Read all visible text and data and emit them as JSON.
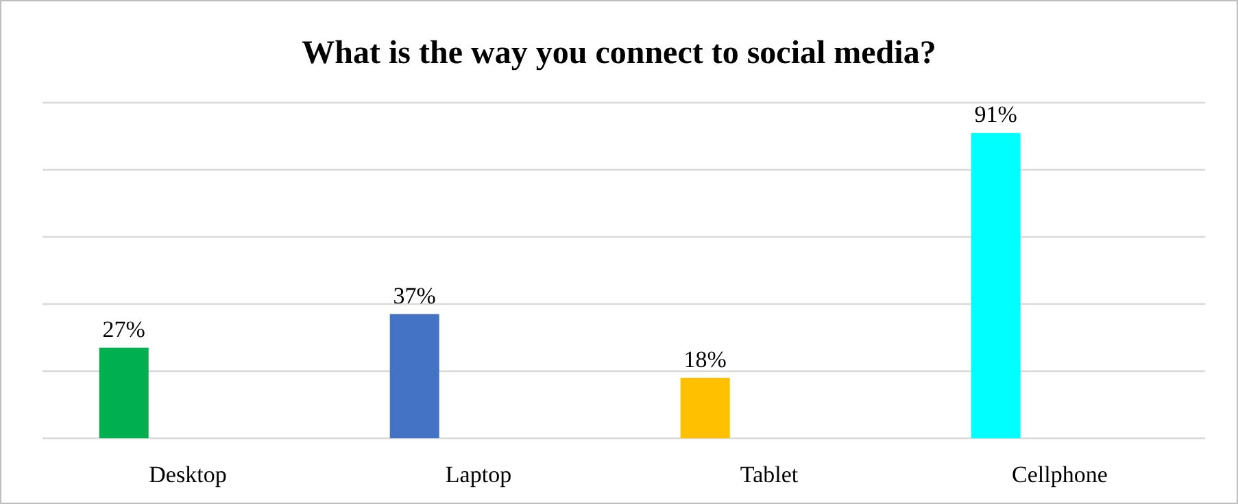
{
  "chart_data": {
    "type": "bar",
    "title": "What is the way you connect to social media?",
    "categories": [
      "Desktop",
      "Laptop",
      "Tablet",
      "Cellphone"
    ],
    "values": [
      27,
      37,
      18,
      91
    ],
    "colors": [
      "#00b050",
      "#4472c4",
      "#ffc000",
      "#00ffff"
    ],
    "value_labels": [
      "27%",
      "37%",
      "18%",
      "91%"
    ],
    "ylim": [
      0,
      100
    ],
    "yticks": [
      {
        "value": 0,
        "label": null
      },
      {
        "value": 20,
        "label": null
      },
      {
        "value": 40,
        "label": null
      },
      {
        "value": 60,
        "label": null
      },
      {
        "value": 80,
        "label": null
      },
      {
        "value": 100,
        "label": null
      }
    ],
    "grid": "y",
    "tick_labels": "x"
  }
}
